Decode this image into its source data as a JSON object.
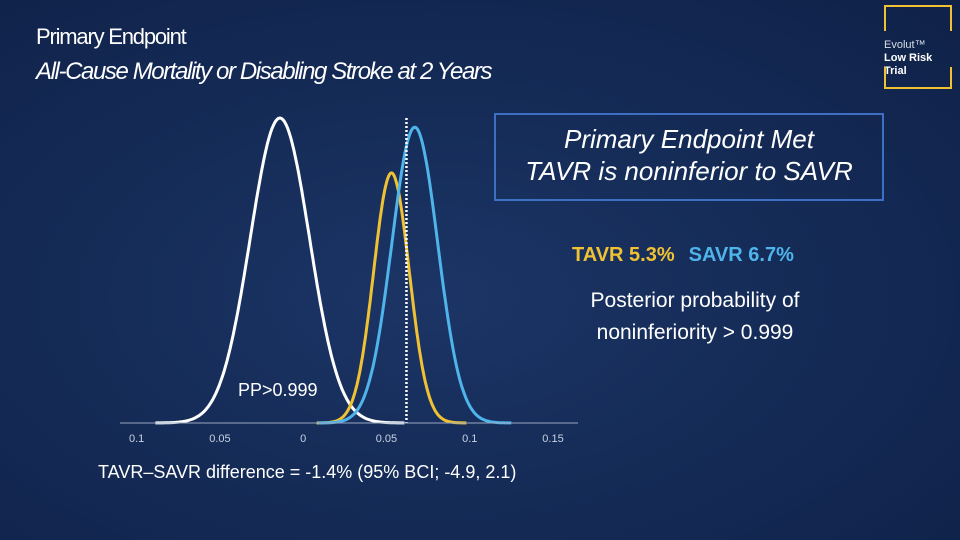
{
  "header": {
    "title": "Primary Endpoint",
    "subtitle": "All-Cause Mortality or Disabling Stroke at 2 Years"
  },
  "logo": {
    "line1": "Evolut™",
    "line2": "Low Risk",
    "line3": "Trial"
  },
  "callout": {
    "line1": "Primary Endpoint Met",
    "line2": "TAVR is noninferior to SAVR"
  },
  "rates": {
    "tavr": "TAVR 5.3%",
    "savr": "SAVR 6.7%"
  },
  "posterior": {
    "line1": "Posterior probability of",
    "line2": "noninferiority > 0.999"
  },
  "pp_label": "PP>0.999",
  "difference_text": "TAVR–SAVR difference = -1.4% (95% BCI; -4.9, 2.1)",
  "colors": {
    "difference": "#ffffff",
    "tavr": "#f0c233",
    "savr": "#4eb4ea",
    "margin_line": "#ffffff",
    "accent_border": "#3d6fc4"
  },
  "chart_data": {
    "type": "line",
    "title": "",
    "xlabel": "",
    "ylabel": "",
    "x_tick_labels": [
      "0.1",
      "0.05",
      "0",
      "0.05",
      "0.1",
      "0.15"
    ],
    "x_tick_values": [
      -0.1,
      -0.05,
      0,
      0.05,
      0.1,
      0.15
    ],
    "xlim": [
      -0.11,
      0.165
    ],
    "noninferiority_margin": 0.062,
    "series": [
      {
        "key": "difference",
        "mean": -0.014,
        "sd": 0.0178,
        "peak": 1.0
      },
      {
        "key": "tavr",
        "mean": 0.053,
        "sd": 0.0107,
        "peak": 0.82
      },
      {
        "key": "savr",
        "mean": 0.067,
        "sd": 0.0138,
        "peak": 0.97
      }
    ],
    "grid": false
  }
}
